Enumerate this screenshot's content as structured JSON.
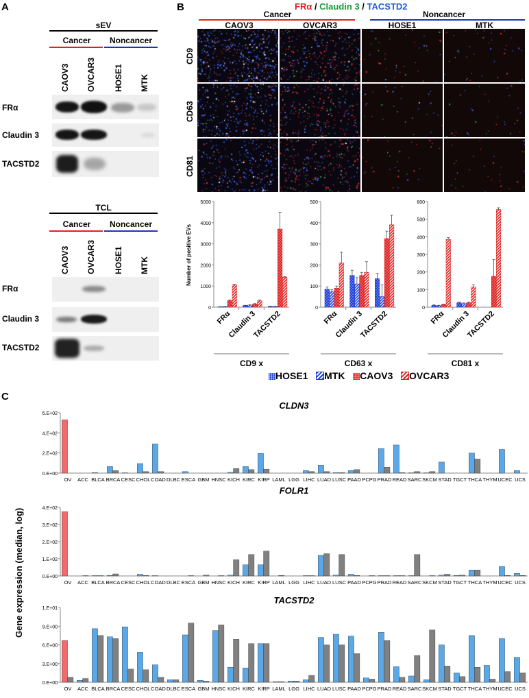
{
  "panelA": {
    "letter": "A",
    "sev": {
      "title": "sEV",
      "cancer": "Cancer",
      "noncancer": "Noncancer",
      "lanes": [
        "CAOV3",
        "OVCAR3",
        "HOSE1",
        "MTK"
      ],
      "rows": [
        "FRα",
        "Claudin 3",
        "TACSTD2"
      ]
    },
    "tcl": {
      "title": "TCL",
      "cancer": "Cancer",
      "noncancer": "Noncancer",
      "lanes": [
        "CAOV3",
        "OVCAR3",
        "HOSE1",
        "MTK"
      ],
      "rows": [
        "FRα",
        "Claudin 3",
        "TACSTD2"
      ]
    }
  },
  "panelB": {
    "letter": "B",
    "title_parts": [
      {
        "text": "FRα",
        "color": "#e02020"
      },
      {
        "text": " / ",
        "color": "#000000"
      },
      {
        "text": "Claudin 3",
        "color": "#1a9a3a"
      },
      {
        "text": " / ",
        "color": "#000000"
      },
      {
        "text": "TACSTD2",
        "color": "#1f5fd6"
      }
    ],
    "cancer": "Cancer",
    "noncancer": "Noncancer",
    "columns": [
      "CAOV3",
      "OVCAR3",
      "HOSE1",
      "MTK"
    ],
    "rows": [
      "CD9",
      "CD63",
      "CD81"
    ],
    "ylabel": "Number of positive EVs",
    "legend": [
      {
        "name": "HOSE1",
        "color": "#1f3fd6",
        "pattern": "dots"
      },
      {
        "name": "MTK",
        "color": "#1f3fd6",
        "pattern": "hatch"
      },
      {
        "name": "CAOV3",
        "color": "#e02020",
        "pattern": "dots"
      },
      {
        "name": "OVCAR3",
        "color": "#e02020",
        "pattern": "hatch"
      }
    ]
  },
  "chart_data": [
    {
      "type": "bar",
      "title": "CD9 x",
      "categories": [
        "FRα",
        "Claudin 3",
        "TACSTD2"
      ],
      "ylim": [
        0,
        5000
      ],
      "yticks": [
        0,
        1000,
        2000,
        3000,
        4000,
        5000
      ],
      "series": [
        {
          "name": "HOSE1",
          "values": [
            20,
            80,
            40
          ],
          "err": [
            5,
            10,
            8
          ]
        },
        {
          "name": "MTK",
          "values": [
            30,
            100,
            40
          ],
          "err": [
            5,
            10,
            8
          ]
        },
        {
          "name": "CAOV3",
          "values": [
            310,
            150,
            3700
          ],
          "err": [
            30,
            20,
            800
          ]
        },
        {
          "name": "OVCAR3",
          "values": [
            1050,
            300,
            1420
          ],
          "err": [
            30,
            40,
            30
          ]
        }
      ]
    },
    {
      "type": "bar",
      "title": "CD63 x",
      "categories": [
        "FRα",
        "Claudin 3",
        "TACSTD2"
      ],
      "ylim": [
        0,
        500
      ],
      "yticks": [
        0,
        100,
        200,
        300,
        400,
        500
      ],
      "series": [
        {
          "name": "HOSE1",
          "values": [
            85,
            150,
            135
          ],
          "err": [
            10,
            25,
            25
          ]
        },
        {
          "name": "MTK",
          "values": [
            75,
            110,
            50
          ],
          "err": [
            8,
            30,
            55
          ]
        },
        {
          "name": "CAOV3",
          "values": [
            90,
            150,
            325
          ],
          "err": [
            10,
            15,
            35
          ]
        },
        {
          "name": "OVCAR3",
          "values": [
            210,
            165,
            390
          ],
          "err": [
            50,
            50,
            45
          ]
        }
      ]
    },
    {
      "type": "bar",
      "title": "CD81 x",
      "categories": [
        "FRα",
        "Claudin 3",
        "TACSTD2"
      ],
      "ylim": [
        0,
        600
      ],
      "yticks": [
        0,
        100,
        200,
        300,
        400,
        500,
        600
      ],
      "series": [
        {
          "name": "HOSE1",
          "values": [
            10,
            25,
            0
          ],
          "err": [
            3,
            4,
            0
          ]
        },
        {
          "name": "MTK",
          "values": [
            8,
            20,
            0
          ],
          "err": [
            3,
            4,
            0
          ]
        },
        {
          "name": "CAOV3",
          "values": [
            15,
            25,
            175
          ],
          "err": [
            3,
            4,
            95
          ]
        },
        {
          "name": "OVCAR3",
          "values": [
            385,
            115,
            555
          ],
          "err": [
            10,
            12,
            10
          ]
        }
      ]
    },
    {
      "type": "bar",
      "title": "CLDN3",
      "categories": [
        "OV",
        "ACC",
        "BLCA",
        "BRCA",
        "CESC",
        "CHOL",
        "COAD",
        "DLBC",
        "ESCA",
        "GBM",
        "HNSC",
        "KICH",
        "KIRC",
        "KIRP",
        "LAML",
        "LGG",
        "LIHC",
        "LUAD",
        "LUSC",
        "PAAD",
        "PCPG",
        "PRAD",
        "READ",
        "SARC",
        "SKCM",
        "STAD",
        "TGCT",
        "THCA",
        "THYM",
        "UCEC",
        "UCS"
      ],
      "yticks": [
        "0.E+00",
        "2.E+02",
        "4.E+02",
        "6.E+02"
      ],
      "ylim": [
        0,
        600
      ],
      "series": [
        {
          "name": "tumor",
          "values": [
            530,
            0,
            5,
            65,
            3,
            95,
            290,
            0,
            15,
            0,
            0,
            8,
            65,
            195,
            0,
            0,
            25,
            80,
            5,
            25,
            0,
            245,
            280,
            3,
            3,
            110,
            0,
            200,
            0,
            235,
            25
          ]
        },
        {
          "name": "normal",
          "values": [
            0,
            0,
            0,
            25,
            0,
            15,
            15,
            0,
            0,
            0,
            0,
            45,
            35,
            40,
            0,
            0,
            15,
            15,
            5,
            35,
            0,
            60,
            5,
            15,
            15,
            0,
            0,
            140,
            0,
            0,
            0
          ]
        }
      ]
    },
    {
      "type": "bar",
      "title": "FOLR1",
      "categories": [
        "OV",
        "ACC",
        "BLCA",
        "BRCA",
        "CESC",
        "CHOL",
        "COAD",
        "DLBC",
        "ESCA",
        "GBM",
        "HNSC",
        "KICH",
        "KIRC",
        "KIRP",
        "LAML",
        "LGG",
        "LIHC",
        "LUAD",
        "LUSC",
        "PAAD",
        "PCPG",
        "PRAD",
        "READ",
        "SARC",
        "SKCM",
        "STAD",
        "TGCT",
        "THCA",
        "THYM",
        "UCEC",
        "UCS"
      ],
      "yticks": [
        "0.E+00",
        "1.E+02",
        "2.E+02",
        "3.E+02",
        "4.E+02"
      ],
      "ylim": [
        0,
        400
      ],
      "series": [
        {
          "name": "tumor",
          "values": [
            375,
            0,
            2,
            3,
            0,
            10,
            2,
            0,
            0,
            0,
            0,
            5,
            65,
            65,
            0,
            0,
            2,
            120,
            5,
            10,
            0,
            2,
            2,
            2,
            0,
            5,
            3,
            35,
            0,
            55,
            15
          ]
        },
        {
          "name": "normal",
          "values": [
            0,
            2,
            2,
            12,
            0,
            3,
            0,
            0,
            2,
            5,
            2,
            95,
            125,
            145,
            3,
            0,
            2,
            130,
            125,
            3,
            2,
            2,
            2,
            125,
            2,
            10,
            5,
            35,
            0,
            3,
            3
          ]
        }
      ]
    },
    {
      "type": "bar",
      "title": "TACSTD2",
      "categories": [
        "OV",
        "ACC",
        "BLCA",
        "BRCA",
        "CESC",
        "CHOL",
        "COAD",
        "DLBC",
        "ESCA",
        "GBM",
        "HNSC",
        "KICH",
        "KIRC",
        "KIRP",
        "LAML",
        "LGG",
        "LIHC",
        "LUAD",
        "LUSC",
        "PAAD",
        "PCPG",
        "PRAD",
        "READ",
        "SARC",
        "SKCM",
        "STAD",
        "TGCT",
        "THCA",
        "THYM",
        "UCEC",
        "UCS"
      ],
      "yticks": [
        "0.E+00",
        "3.E+00",
        "6.E+00",
        "9.E+00",
        "1.E+01"
      ],
      "ylim": [
        0,
        12
      ],
      "series": [
        {
          "name": "tumor",
          "values": [
            6.7,
            0.3,
            8.6,
            7.3,
            8.9,
            4.8,
            2.8,
            0.4,
            7.6,
            0.3,
            8.3,
            2.4,
            2.3,
            6.2,
            0.1,
            0.2,
            0.4,
            7.2,
            7.7,
            7.4,
            0.7,
            8.0,
            2.5,
            1.0,
            0.4,
            6.0,
            1.5,
            7.5,
            2.7,
            7.0,
            4.0
          ]
        },
        {
          "name": "normal",
          "values": [
            0.8,
            0.6,
            7.5,
            7.0,
            2.1,
            2.0,
            0.8,
            0.4,
            9.5,
            0.2,
            9.2,
            6.9,
            6.2,
            6.2,
            0.1,
            0.2,
            1.1,
            6.0,
            6.0,
            4.6,
            0.5,
            6.7,
            0.8,
            4.3,
            8.4,
            2.6,
            0.9,
            2.4,
            0.5,
            1.7,
            1.5
          ]
        }
      ]
    }
  ],
  "panelC": {
    "letter": "C",
    "ylabel": "Gene expression (median, log)",
    "ov_color": "#f26a6a",
    "tumor_color": "#5aa8e8",
    "normal_color": "#808080"
  }
}
